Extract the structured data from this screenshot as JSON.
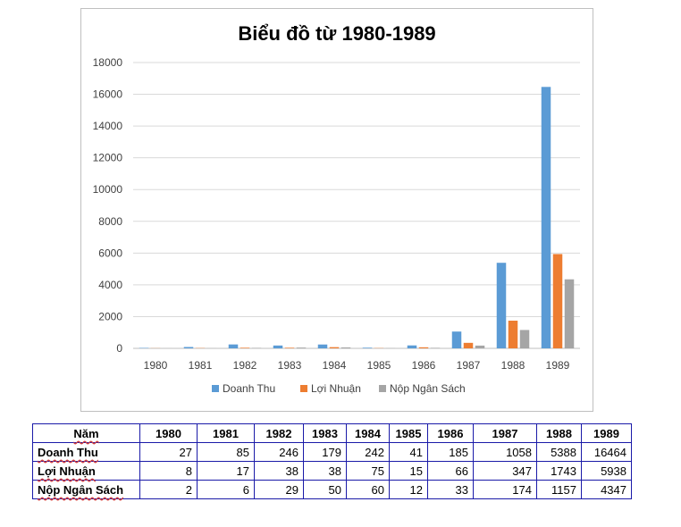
{
  "chart_data": {
    "type": "bar",
    "title": "Biểu đồ từ 1980-1989",
    "categories": [
      "1980",
      "1981",
      "1982",
      "1983",
      "1984",
      "1985",
      "1986",
      "1987",
      "1988",
      "1989"
    ],
    "series": [
      {
        "name": "Doanh Thu",
        "color": "#5b9bd5",
        "values": [
          27,
          85,
          246,
          179,
          242,
          41,
          185,
          1058,
          5388,
          16464
        ]
      },
      {
        "name": "Lợi Nhuận",
        "color": "#ed7d31",
        "values": [
          8,
          17,
          38,
          38,
          75,
          15,
          66,
          347,
          1743,
          5938
        ]
      },
      {
        "name": "Nộp Ngân Sách",
        "color": "#a5a5a5",
        "values": [
          2,
          6,
          29,
          50,
          60,
          12,
          33,
          174,
          1157,
          4347
        ]
      }
    ],
    "ylim": [
      0,
      18000
    ],
    "yticks": [
      "0",
      "2000",
      "4000",
      "6000",
      "8000",
      "10000",
      "12000",
      "14000",
      "16000",
      "18000"
    ],
    "grid": true,
    "legend_position": "bottom"
  },
  "table": {
    "header": [
      "Năm",
      "1980",
      "1981",
      "1982",
      "1983",
      "1984",
      "1985",
      "1986",
      "1987",
      "1988",
      "1989"
    ],
    "rows": [
      {
        "label": "Doanh Thu",
        "values": [
          "27",
          "85",
          "246",
          "179",
          "242",
          "41",
          "185",
          "1058",
          "5388",
          "16464"
        ]
      },
      {
        "label": "Lợi Nhuận",
        "values": [
          "8",
          "17",
          "38",
          "38",
          "75",
          "15",
          "66",
          "347",
          "1743",
          "5938"
        ]
      },
      {
        "label": "Nộp Ngân Sách",
        "values": [
          "2",
          "6",
          "29",
          "50",
          "60",
          "12",
          "33",
          "174",
          "1157",
          "4347"
        ]
      }
    ]
  }
}
